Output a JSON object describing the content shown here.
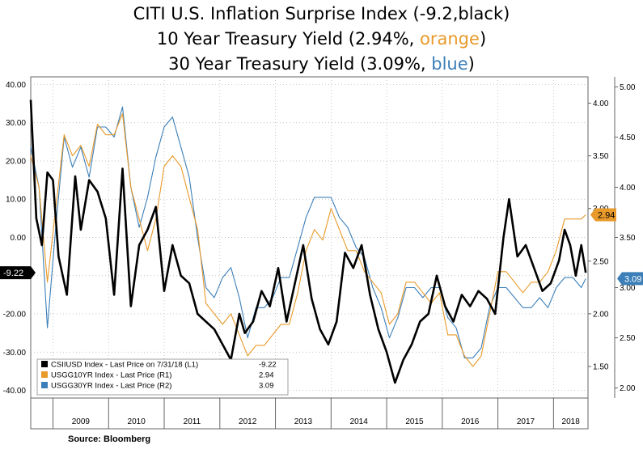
{
  "title": {
    "line1": "CITI U.S. Inflation Surprise Index (-9.2,black)",
    "line2_prefix": "10 Year Treasury Yield (2.94%, ",
    "line2_color_word": "orange",
    "line2_suffix": ")",
    "line3_prefix": "30 Year Treasury Yield (3.09%, ",
    "line3_color_word": "blue",
    "line3_suffix": ")"
  },
  "source": "Source: Bloomberg",
  "colors": {
    "black_series": "#000000",
    "orange_series": "#e89a2a",
    "blue_series": "#3c7fb8",
    "panel_bg": "#ffffff",
    "grid": "#b0b0b0"
  },
  "chart_data": {
    "type": "line",
    "x_label_years": [
      "2009",
      "2010",
      "2011",
      "2012",
      "2013",
      "2014",
      "2015",
      "2016",
      "2017",
      "2018"
    ],
    "grid": "dotted",
    "axes": {
      "left": {
        "ticks": [
          "40.00",
          "30.00",
          "20.00",
          "10.00",
          "0.00",
          "-10.00",
          "-20.00",
          "-30.00",
          "-40.00"
        ],
        "range": [
          -42,
          42
        ]
      },
      "r1": {
        "ticks": [
          "4.00",
          "3.50",
          "3.00",
          "2.50",
          "2.00",
          "1.50"
        ],
        "range": [
          1.2,
          4.25
        ]
      },
      "r2": {
        "ticks": [
          "5.00",
          "4.50",
          "4.00",
          "3.50",
          "3.00",
          "2.50",
          "2.00"
        ],
        "range": [
          1.9,
          5.1
        ]
      }
    },
    "last_value_tags": {
      "left": "-9.22",
      "r1": "2.94",
      "r2": "3.09"
    },
    "legend": {
      "placement": "bottom-left",
      "entries": [
        {
          "name": "CSIIUSD Index - Last Price on 7/31/18 (L1)",
          "value": "-9.22",
          "color": "#000000"
        },
        {
          "name": "USGG10YR Index - Last Price (R1)",
          "value": "2.94",
          "color": "#e89a2a"
        },
        {
          "name": "USGG30YR Index - Last Price (R2)",
          "value": "3.09",
          "color": "#3c7fb8"
        }
      ]
    },
    "series": [
      {
        "name": "CSIIUSD Index",
        "axis": "left",
        "color": "#000000",
        "x": [
          2008.6,
          2008.7,
          2008.8,
          2008.9,
          2009.0,
          2009.1,
          2009.25,
          2009.4,
          2009.5,
          2009.65,
          2009.8,
          2009.95,
          2010.1,
          2010.25,
          2010.4,
          2010.55,
          2010.7,
          2010.85,
          2011.0,
          2011.15,
          2011.3,
          2011.45,
          2011.6,
          2011.75,
          2011.9,
          2012.05,
          2012.2,
          2012.35,
          2012.45,
          2012.6,
          2012.75,
          2012.9,
          2013.05,
          2013.2,
          2013.35,
          2013.5,
          2013.65,
          2013.8,
          2013.95,
          2014.1,
          2014.25,
          2014.4,
          2014.55,
          2014.7,
          2014.85,
          2015.0,
          2015.15,
          2015.3,
          2015.45,
          2015.6,
          2015.75,
          2015.9,
          2016.05,
          2016.2,
          2016.35,
          2016.5,
          2016.65,
          2016.8,
          2016.95,
          2017.1,
          2017.2,
          2017.35,
          2017.5,
          2017.65,
          2017.8,
          2017.95,
          2018.1,
          2018.2,
          2018.3,
          2018.4,
          2018.5,
          2018.58
        ],
        "y": [
          36,
          5,
          -2,
          17,
          15,
          -5,
          -15,
          16,
          2,
          15,
          12,
          5,
          -15,
          18,
          -18,
          -2,
          2,
          8,
          -14,
          -2,
          -10,
          -12,
          -20,
          -22,
          -24,
          -28,
          -32,
          -20,
          -25,
          -22,
          -14,
          -18,
          -8,
          -22,
          -12,
          -2,
          -16,
          -24,
          -28,
          -22,
          -4,
          -8,
          -2,
          -15,
          -24,
          -30,
          -38,
          -32,
          -28,
          -22,
          -20,
          -10,
          -18,
          -22,
          -15,
          -18,
          -14,
          -16,
          -20,
          0,
          10,
          -5,
          -2,
          -8,
          -14,
          -12,
          -6,
          2,
          -2,
          -10,
          -2,
          -9.22
        ]
      },
      {
        "name": "USGG10YR Index",
        "axis": "r1",
        "color": "#e89a2a",
        "x": [
          2008.6,
          2008.75,
          2008.9,
          2009.05,
          2009.2,
          2009.35,
          2009.5,
          2009.65,
          2009.8,
          2009.95,
          2010.1,
          2010.25,
          2010.4,
          2010.55,
          2010.7,
          2010.85,
          2011.0,
          2011.15,
          2011.3,
          2011.45,
          2011.6,
          2011.75,
          2011.9,
          2012.05,
          2012.2,
          2012.35,
          2012.5,
          2012.65,
          2012.8,
          2012.95,
          2013.1,
          2013.25,
          2013.4,
          2013.55,
          2013.7,
          2013.85,
          2014.0,
          2014.15,
          2014.3,
          2014.45,
          2014.6,
          2014.75,
          2014.9,
          2015.05,
          2015.2,
          2015.35,
          2015.5,
          2015.65,
          2015.8,
          2015.95,
          2016.1,
          2016.25,
          2016.4,
          2016.55,
          2016.7,
          2016.85,
          2017.0,
          2017.15,
          2017.3,
          2017.45,
          2017.6,
          2017.75,
          2017.9,
          2018.05,
          2018.2,
          2018.35,
          2018.5,
          2018.58
        ],
        "y": [
          3.5,
          3.2,
          2.3,
          3.0,
          3.7,
          3.5,
          3.6,
          3.4,
          3.8,
          3.7,
          3.7,
          3.9,
          3.2,
          2.9,
          2.6,
          2.9,
          3.4,
          3.5,
          3.4,
          3.1,
          2.8,
          2.1,
          2.0,
          1.9,
          2.0,
          1.8,
          1.6,
          1.7,
          1.7,
          1.8,
          1.9,
          1.9,
          2.2,
          2.6,
          2.8,
          2.7,
          3.0,
          2.8,
          2.6,
          2.6,
          2.4,
          2.3,
          2.2,
          1.9,
          2.0,
          2.3,
          2.3,
          2.2,
          2.1,
          2.2,
          1.8,
          1.8,
          1.6,
          1.5,
          1.6,
          2.0,
          2.4,
          2.4,
          2.3,
          2.2,
          2.3,
          2.3,
          2.4,
          2.6,
          2.9,
          2.9,
          2.9,
          2.94
        ]
      },
      {
        "name": "USGG30YR Index",
        "axis": "r2",
        "color": "#3c7fb8",
        "x": [
          2008.6,
          2008.75,
          2008.9,
          2009.05,
          2009.2,
          2009.35,
          2009.5,
          2009.65,
          2009.8,
          2009.95,
          2010.1,
          2010.25,
          2010.4,
          2010.55,
          2010.7,
          2010.85,
          2011.0,
          2011.15,
          2011.3,
          2011.45,
          2011.6,
          2011.75,
          2011.9,
          2012.05,
          2012.2,
          2012.35,
          2012.5,
          2012.65,
          2012.8,
          2012.95,
          2013.1,
          2013.25,
          2013.4,
          2013.55,
          2013.7,
          2013.85,
          2014.0,
          2014.15,
          2014.3,
          2014.45,
          2014.6,
          2014.75,
          2014.9,
          2015.05,
          2015.2,
          2015.35,
          2015.5,
          2015.65,
          2015.8,
          2015.95,
          2016.1,
          2016.25,
          2016.4,
          2016.55,
          2016.7,
          2016.85,
          2017.0,
          2017.15,
          2017.3,
          2017.45,
          2017.6,
          2017.75,
          2017.9,
          2018.05,
          2018.2,
          2018.35,
          2018.5,
          2018.58
        ],
        "y": [
          4.4,
          4.0,
          2.6,
          3.6,
          4.5,
          4.2,
          4.4,
          4.1,
          4.6,
          4.6,
          4.5,
          4.8,
          4.0,
          3.6,
          3.9,
          4.3,
          4.6,
          4.7,
          4.4,
          4.1,
          3.5,
          3.0,
          2.9,
          3.1,
          3.2,
          2.9,
          2.5,
          2.8,
          2.8,
          2.9,
          3.1,
          3.1,
          3.4,
          3.7,
          3.9,
          3.9,
          3.9,
          3.7,
          3.6,
          3.4,
          3.3,
          3.0,
          2.8,
          2.5,
          2.7,
          3.0,
          3.0,
          2.9,
          3.0,
          3.0,
          2.7,
          2.6,
          2.3,
          2.3,
          2.4,
          2.8,
          3.0,
          3.0,
          2.9,
          2.8,
          2.8,
          2.9,
          2.8,
          3.0,
          3.1,
          3.1,
          3.0,
          3.09
        ]
      }
    ]
  }
}
